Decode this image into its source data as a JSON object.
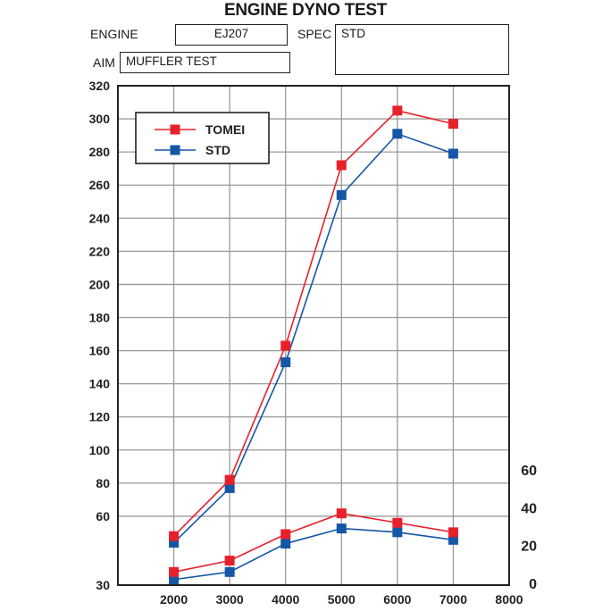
{
  "title": "ENGINE DYNO TEST",
  "info": {
    "engine_label": "ENGINE",
    "engine_value": "EJ207",
    "spec_label": "SPEC",
    "spec_value": "STD",
    "aim_label": "AIM",
    "aim_value": "MUFFLER TEST"
  },
  "colors": {
    "tomei": "#e8202a",
    "std": "#1556a6"
  },
  "chart_data": {
    "type": "line",
    "x_ticks": [
      2000,
      3000,
      4000,
      5000,
      6000,
      7000,
      8000
    ],
    "xlim": [
      1000,
      8000
    ],
    "left_axis": {
      "ticks": [
        30,
        60,
        80,
        100,
        120,
        140,
        160,
        180,
        200,
        220,
        240,
        260,
        280,
        300,
        320
      ],
      "ylim": [
        40,
        320
      ]
    },
    "right_axis": {
      "ticks": [
        0,
        20,
        40,
        60
      ],
      "ylim": [
        0,
        60
      ]
    },
    "grid": true,
    "legend": {
      "position": "top-left",
      "entries": [
        "TOMEI",
        "STD"
      ]
    },
    "series": [
      {
        "name": "TOMEI",
        "axis": "left",
        "x": [
          2000,
          3000,
          4000,
          5000,
          6000,
          7000
        ],
        "values": [
          48,
          82,
          163,
          272,
          305,
          297
        ]
      },
      {
        "name": "STD",
        "axis": "left",
        "x": [
          2000,
          3000,
          4000,
          5000,
          6000,
          7000
        ],
        "values": [
          44,
          77,
          153,
          254,
          291,
          279
        ]
      },
      {
        "name": "TOMEI",
        "axis": "right",
        "x": [
          2000,
          3000,
          4000,
          5000,
          6000,
          7000
        ],
        "values": [
          6,
          12,
          26,
          37,
          32,
          27
        ]
      },
      {
        "name": "STD",
        "axis": "right",
        "x": [
          2000,
          3000,
          4000,
          5000,
          6000,
          7000
        ],
        "values": [
          2,
          6,
          21,
          29,
          27,
          23
        ]
      }
    ]
  }
}
